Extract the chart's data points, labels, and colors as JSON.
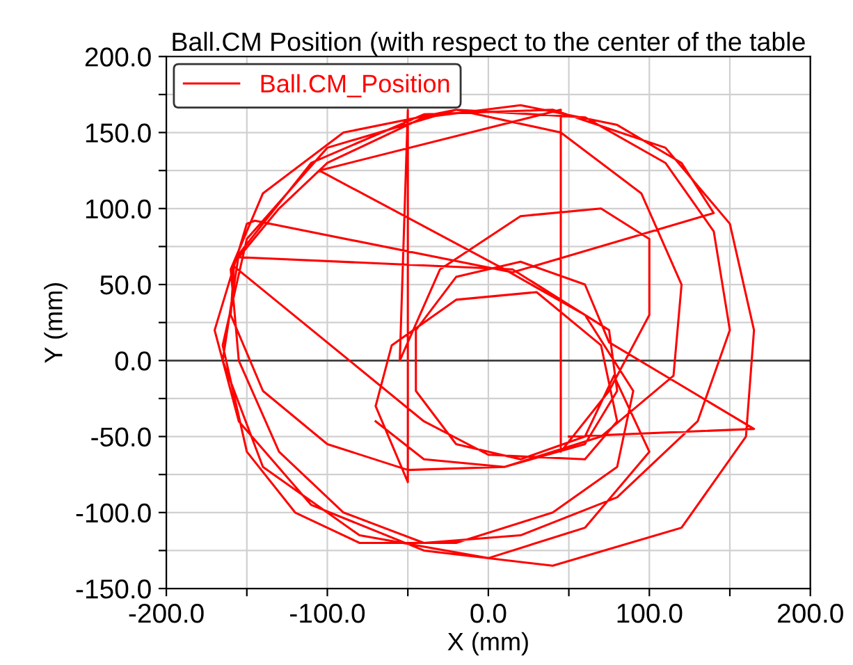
{
  "chart_data": {
    "type": "line",
    "title": "Ball.CM Position (with respect to the center of the table",
    "xlabel": "X (mm)",
    "ylabel": "Y (mm)",
    "xlim": [
      -200,
      200
    ],
    "ylim": [
      -150,
      200
    ],
    "xticks": [
      {
        "value": -200,
        "label": "-200.0"
      },
      {
        "value": -150,
        "label": null
      },
      {
        "value": -100,
        "label": "-100.0"
      },
      {
        "value": -50,
        "label": null
      },
      {
        "value": 0,
        "label": "0.0"
      },
      {
        "value": 50,
        "label": null
      },
      {
        "value": 100,
        "label": "100.0"
      },
      {
        "value": 150,
        "label": null
      },
      {
        "value": 200,
        "label": "200.0"
      }
    ],
    "yticks": [
      {
        "value": -150,
        "label": "-150.0"
      },
      {
        "value": -125,
        "label": null
      },
      {
        "value": -100,
        "label": "-100.0"
      },
      {
        "value": -75,
        "label": null
      },
      {
        "value": -50,
        "label": "-50.0"
      },
      {
        "value": -25,
        "label": null
      },
      {
        "value": 0,
        "label": "0.0"
      },
      {
        "value": 25,
        "label": null
      },
      {
        "value": 50,
        "label": "50.0"
      },
      {
        "value": 75,
        "label": null
      },
      {
        "value": 100,
        "label": "100.0"
      },
      {
        "value": 125,
        "label": null
      },
      {
        "value": 150,
        "label": "150.0"
      },
      {
        "value": 175,
        "label": null
      },
      {
        "value": 200,
        "label": "200.0"
      }
    ],
    "grid": true,
    "legend": "top left",
    "marker": "none",
    "line_style": "solid",
    "ref_lines": [
      {
        "axis": "y",
        "value": 0,
        "label": null,
        "color": "#404040"
      }
    ],
    "series": [
      {
        "name": "Ball.CM_Position",
        "color": "#ff0000",
        "x": [
          50,
          165,
          75,
          60,
          20,
          -20,
          -45,
          -45,
          -20,
          20,
          60,
          78,
          100,
          60,
          0,
          -80,
          -140,
          -165,
          -155,
          -110,
          -40,
          40,
          110,
          150,
          165,
          160,
          120,
          40,
          -40,
          -110,
          -155,
          -170,
          -150,
          -145,
          15,
          140,
          120,
          80,
          20,
          -40,
          -100,
          -130,
          -155,
          15,
          75,
          80,
          60,
          10,
          -50,
          -100,
          -140,
          -160,
          -158,
          -40,
          0,
          60,
          80,
          70,
          30,
          -20,
          -60,
          -70,
          -50,
          -50,
          -55,
          -30,
          20,
          70,
          100,
          100,
          75,
          45,
          45,
          -105,
          10,
          60,
          90,
          80,
          40,
          -20,
          -80,
          -120,
          -150,
          -165,
          -150,
          -100,
          -20,
          60,
          110,
          140,
          150,
          130,
          80,
          20,
          -40,
          -90,
          -130,
          -155,
          -160,
          -140,
          -90,
          -20,
          45,
          95,
          120,
          115,
          70,
          10,
          -40,
          -70
        ],
        "values": [
          -50,
          -45,
          12,
          50,
          65,
          55,
          20,
          -20,
          -55,
          -65,
          -50,
          -10,
          -60,
          -110,
          -130,
          -115,
          -70,
          0,
          70,
          130,
          162,
          165,
          140,
          90,
          20,
          -50,
          -110,
          -135,
          -125,
          -95,
          -40,
          20,
          90,
          92,
          58,
          97,
          130,
          155,
          168,
          160,
          130,
          100,
          68,
          60,
          20,
          -20,
          -55,
          -70,
          -72,
          -55,
          -20,
          30,
          62,
          -40,
          -62,
          -65,
          -40,
          10,
          45,
          40,
          10,
          -30,
          -80,
          165,
          0,
          60,
          95,
          100,
          80,
          30,
          -20,
          -60,
          165,
          125,
          60,
          30,
          -20,
          -70,
          -100,
          -120,
          -120,
          -100,
          -60,
          10,
          80,
          140,
          165,
          160,
          130,
          85,
          20,
          -40,
          -90,
          -115,
          -120,
          -100,
          -60,
          0,
          60,
          110,
          150,
          165,
          150,
          110,
          50,
          -10,
          -50,
          -70,
          -65,
          -40
        ]
      }
    ]
  }
}
